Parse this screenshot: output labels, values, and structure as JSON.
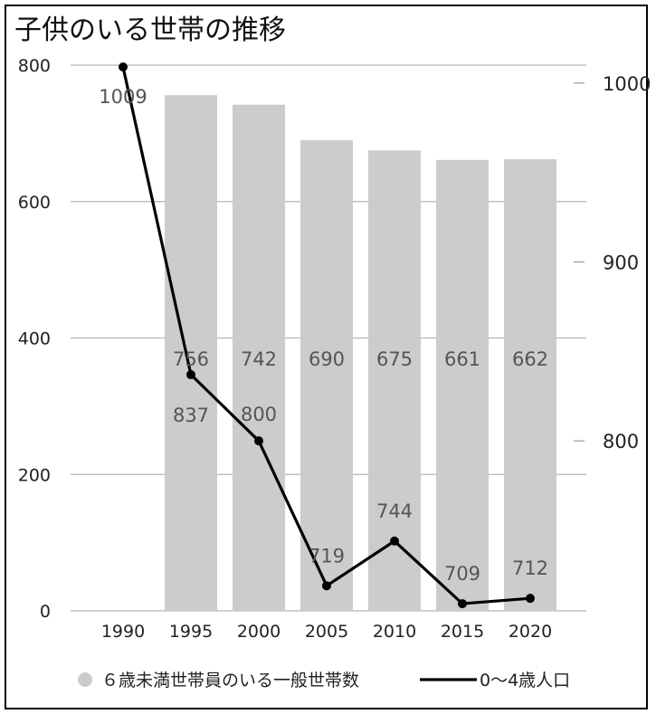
{
  "chart_data": {
    "type": "bar+line",
    "title": "子供のいる世帯の推移",
    "categories": [
      "1990",
      "1995",
      "2000",
      "2005",
      "2010",
      "2015",
      "2020"
    ],
    "series": [
      {
        "name": "６歳未満世帯員のいる一般世帯数",
        "type": "bar",
        "axis": "left",
        "values": [
          null,
          756,
          742,
          690,
          675,
          661,
          662
        ],
        "color": "#cccccc"
      },
      {
        "name": "0〜4歳人口",
        "type": "line",
        "axis": "right",
        "values": [
          1009,
          837,
          800,
          719,
          744,
          709,
          712
        ],
        "color": "#000000"
      }
    ],
    "left_axis": {
      "min": 0,
      "max": 800,
      "ticks": [
        "0",
        "200",
        "400",
        "600",
        "800"
      ]
    },
    "right_axis": {
      "min": 705,
      "max": 1010,
      "ticks": [
        "800",
        "900",
        "1000"
      ]
    },
    "grid": true,
    "legend_position": "bottom"
  }
}
